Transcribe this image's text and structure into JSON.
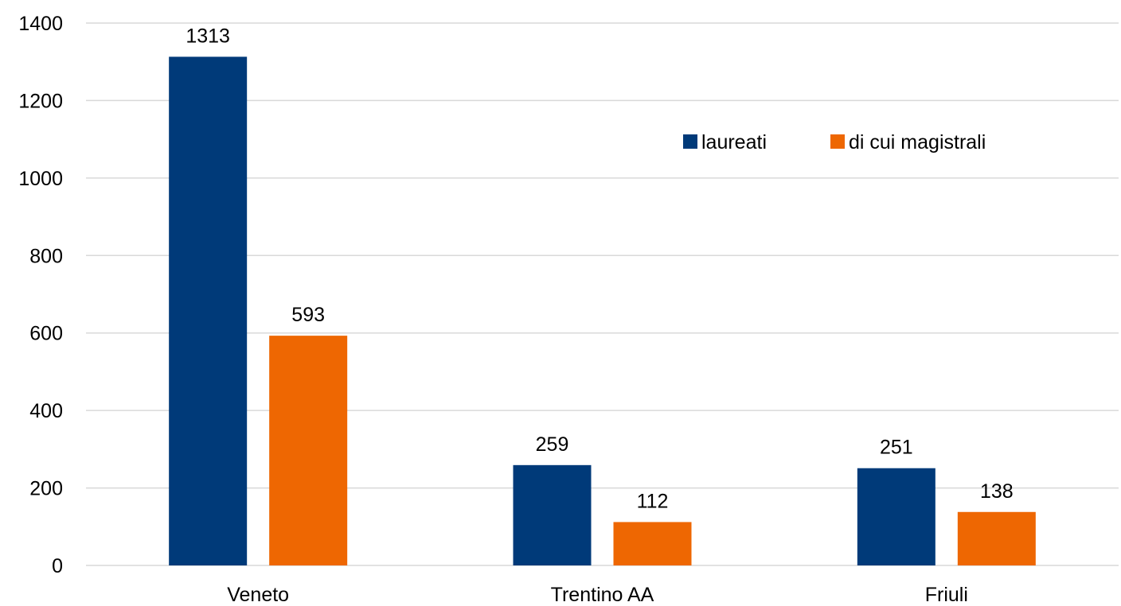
{
  "chart_data": {
    "type": "bar",
    "title": "",
    "xlabel": "",
    "ylabel": "",
    "categories": [
      "Veneto",
      "Trentino AA",
      "Friuli"
    ],
    "series": [
      {
        "name": "laureati",
        "values": [
          1313,
          259,
          251
        ],
        "color": "#003a79"
      },
      {
        "name": "di cui magistrali",
        "values": [
          593,
          112,
          138
        ],
        "color": "#ee6702"
      }
    ],
    "ylim": [
      0,
      1400
    ],
    "yticks": [
      0,
      200,
      400,
      600,
      800,
      1000,
      1200,
      1400
    ],
    "grid": true,
    "legend_position": "top-right",
    "data_labels": true
  }
}
